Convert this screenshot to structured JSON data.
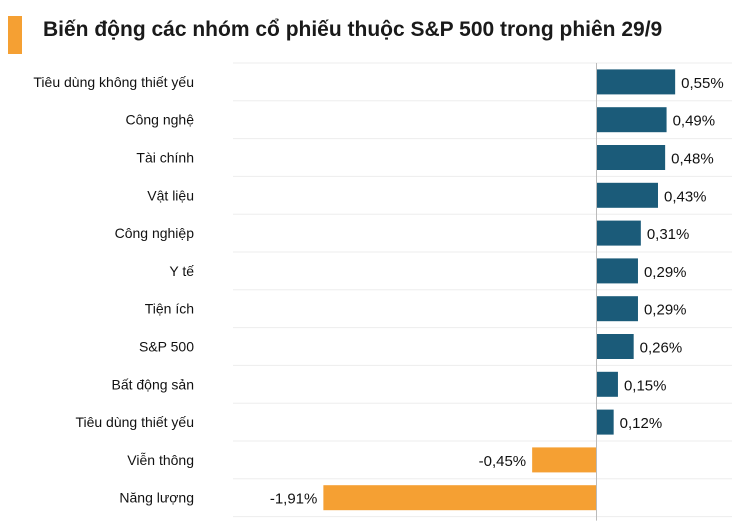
{
  "title": "Biến động các nhóm cổ phiếu thuộc S&P 500 trong phiên 29/9",
  "colors": {
    "accent": "#F5A033",
    "positive": "#1B5B79",
    "negative": "#F5A033",
    "grid": "#ededed",
    "axis": "#bbbbbb"
  },
  "chart_data": {
    "type": "bar",
    "orientation": "horizontal",
    "title": "Biến động các nhóm cổ phiếu thuộc S&P 500 trong phiên 29/9",
    "categories": [
      "Tiêu dùng không thiết yếu",
      "Công nghệ",
      "Tài chính",
      "Vật liệu",
      "Công nghiệp",
      "Y tế",
      "Tiện ích",
      "S&P 500",
      "Bất động sản",
      "Tiêu dùng thiết yếu",
      "Viễn thông",
      "Năng lượng"
    ],
    "values": [
      0.55,
      0.49,
      0.48,
      0.43,
      0.31,
      0.29,
      0.29,
      0.26,
      0.15,
      0.12,
      -0.45,
      -1.91
    ],
    "labels": [
      "0,55%",
      "0,49%",
      "0,48%",
      "0,43%",
      "0,31%",
      "0,29%",
      "0,29%",
      "0,26%",
      "0,15%",
      "0,12%",
      "-0,45%",
      "-1,91%"
    ],
    "unit": "%",
    "xlim": [
      -2.1,
      0.7
    ],
    "grid": true,
    "legend": "none"
  }
}
